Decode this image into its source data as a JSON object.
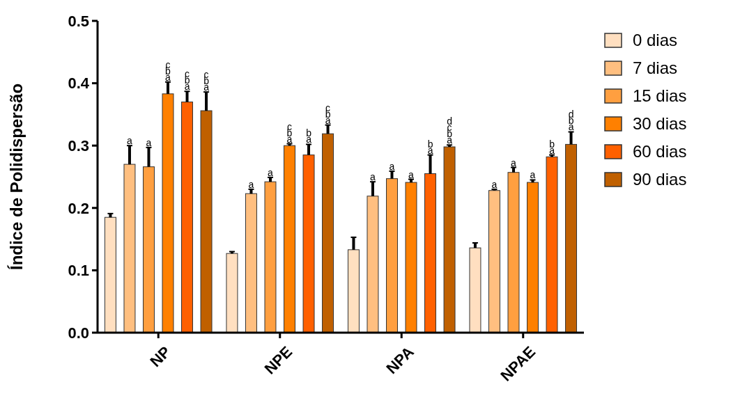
{
  "chart_data": {
    "type": "bar",
    "ylabel": "Índice de Polidispersão",
    "categories": [
      "NP",
      "NPE",
      "NPA",
      "NPAE"
    ],
    "ylim": [
      0,
      0.5
    ],
    "yticks": [
      {
        "value": 0,
        "label": "0.0"
      },
      0.1,
      0.2,
      0.3,
      0.4,
      0.5
    ],
    "legend": "right",
    "grid": false,
    "series": [
      {
        "name": "0 dias",
        "color": "#ffdfc0",
        "values": [
          0.185,
          0.127,
          0.133,
          0.136
        ],
        "errors": [
          [
            0.185,
            0.191
          ],
          [
            0.127,
            0.13
          ],
          [
            0.133,
            0.153
          ],
          [
            0.136,
            0.144
          ]
        ],
        "value_labels": [
          null,
          null,
          null,
          null
        ]
      },
      {
        "name": "7 dias",
        "color": "#ffbf80",
        "values": [
          0.27,
          0.223,
          0.219,
          0.228
        ],
        "errors": [
          [
            0.27,
            0.3
          ],
          [
            0.223,
            0.23
          ],
          [
            0.219,
            0.242
          ],
          [
            0.228,
            0.23
          ]
        ],
        "value_labels": [
          "a",
          "a",
          "a",
          "a"
        ]
      },
      {
        "name": "15 dias",
        "color": "#ff9f40",
        "values": [
          0.266,
          0.242,
          0.247,
          0.257
        ],
        "errors": [
          [
            0.266,
            0.297
          ],
          [
            0.242,
            0.249
          ],
          [
            0.247,
            0.259
          ],
          [
            0.257,
            0.265
          ]
        ],
        "value_labels": [
          "a",
          "a",
          "a",
          "a"
        ]
      },
      {
        "name": "30 dias",
        "color": "#ff8000",
        "values": [
          0.383,
          0.3,
          0.241,
          0.241
        ],
        "errors": [
          [
            0.383,
            0.402
          ],
          [
            0.3,
            0.303
          ],
          [
            0.241,
            0.246
          ],
          [
            0.241,
            0.245
          ]
        ],
        "value_labels": [
          "cba",
          "cba",
          "a",
          "a"
        ]
      },
      {
        "name": "60 dias",
        "color": "#ff6000",
        "values": [
          0.37,
          0.285,
          0.255,
          0.282
        ],
        "errors": [
          [
            0.37,
            0.387
          ],
          [
            0.285,
            0.302
          ],
          [
            0.255,
            0.285
          ],
          [
            0.282,
            0.285
          ]
        ],
        "value_labels": [
          "cba",
          "ba",
          "ba",
          "ba"
        ]
      },
      {
        "name": "90 dias",
        "color": "#c06000",
        "values": [
          0.356,
          0.319,
          0.298,
          0.302
        ],
        "errors": [
          [
            0.356,
            0.386
          ],
          [
            0.319,
            0.333
          ],
          [
            0.298,
            0.301
          ],
          [
            0.302,
            0.322
          ]
        ],
        "value_labels": [
          "cba",
          "cba",
          "dcba",
          "dba"
        ]
      }
    ]
  }
}
